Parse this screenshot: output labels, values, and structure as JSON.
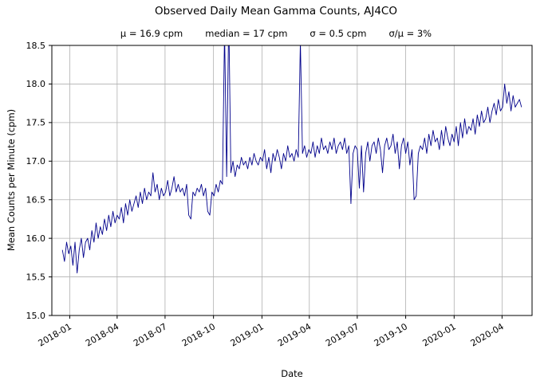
{
  "chart_data": {
    "type": "line",
    "title": "Observed Daily Mean Gamma Counts, AJ4CO",
    "stats": [
      "μ = 16.9 cpm",
      "median = 17 cpm",
      "σ = 0.5 cpm",
      "σ/μ = 3%"
    ],
    "xlabel": "Date",
    "ylabel": "Mean Counts per Minute (cpm)",
    "ylim": [
      15.0,
      18.5
    ],
    "y_ticks": [
      15.0,
      15.5,
      16.0,
      16.5,
      17.0,
      17.5,
      18.0,
      18.5
    ],
    "x_ticks": [
      "2018-01",
      "2018-04",
      "2018-07",
      "2018-10",
      "2019-01",
      "2019-04",
      "2019-07",
      "2019-10",
      "2020-01",
      "2020-04"
    ],
    "xlim": [
      "2017-11-28",
      "2020-05-28"
    ],
    "grid": true,
    "legend": "none",
    "line_color": "#00008b",
    "grid_color": "#b0b0b0",
    "series": {
      "name": "daily mean gamma counts",
      "start": "2017-12-18",
      "step_days": 4,
      "values": [
        15.85,
        15.7,
        15.95,
        15.8,
        15.9,
        15.65,
        15.95,
        15.55,
        15.85,
        16.0,
        15.75,
        15.95,
        16.0,
        15.85,
        16.1,
        15.95,
        16.2,
        16.0,
        16.15,
        16.05,
        16.25,
        16.1,
        16.3,
        16.15,
        16.35,
        16.2,
        16.3,
        16.25,
        16.4,
        16.2,
        16.45,
        16.3,
        16.5,
        16.35,
        16.45,
        16.55,
        16.4,
        16.6,
        16.45,
        16.65,
        16.5,
        16.6,
        16.55,
        16.85,
        16.6,
        16.7,
        16.5,
        16.65,
        16.55,
        16.6,
        16.75,
        16.55,
        16.65,
        16.8,
        16.6,
        16.7,
        16.6,
        16.65,
        16.55,
        16.7,
        16.3,
        16.25,
        16.6,
        16.55,
        16.65,
        16.6,
        16.7,
        16.55,
        16.65,
        16.35,
        16.3,
        16.6,
        16.55,
        16.7,
        16.6,
        16.75,
        16.7,
        18.7,
        16.8,
        18.9,
        16.85,
        17.0,
        16.8,
        16.95,
        16.9,
        17.05,
        16.95,
        17.0,
        16.9,
        17.05,
        16.95,
        17.1,
        17.0,
        16.95,
        17.05,
        17.0,
        17.15,
        16.9,
        17.05,
        16.85,
        17.1,
        17.0,
        17.15,
        17.05,
        16.9,
        17.1,
        17.0,
        17.2,
        17.05,
        17.1,
        17.0,
        17.15,
        17.05,
        18.55,
        17.1,
        17.2,
        17.05,
        17.15,
        17.1,
        17.25,
        17.05,
        17.2,
        17.1,
        17.3,
        17.15,
        17.2,
        17.1,
        17.25,
        17.15,
        17.3,
        17.1,
        17.2,
        17.25,
        17.15,
        17.3,
        17.1,
        17.2,
        16.45,
        17.1,
        17.2,
        17.15,
        16.65,
        17.2,
        16.6,
        17.1,
        17.25,
        17.0,
        17.2,
        17.25,
        17.1,
        17.3,
        17.15,
        16.85,
        17.2,
        17.3,
        17.15,
        17.2,
        17.35,
        17.1,
        17.25,
        16.9,
        17.2,
        17.3,
        17.1,
        17.25,
        16.95,
        17.15,
        16.5,
        16.55,
        17.1,
        17.2,
        17.15,
        17.3,
        17.1,
        17.35,
        17.2,
        17.4,
        17.25,
        17.3,
        17.15,
        17.4,
        17.2,
        17.45,
        17.3,
        17.2,
        17.35,
        17.25,
        17.45,
        17.2,
        17.5,
        17.3,
        17.55,
        17.35,
        17.45,
        17.4,
        17.55,
        17.35,
        17.6,
        17.45,
        17.65,
        17.5,
        17.55,
        17.7,
        17.5,
        17.65,
        17.75,
        17.6,
        17.8,
        17.65,
        17.7,
        18.0,
        17.75,
        17.9,
        17.65,
        17.85,
        17.7,
        17.75,
        17.8,
        17.7
      ]
    }
  }
}
